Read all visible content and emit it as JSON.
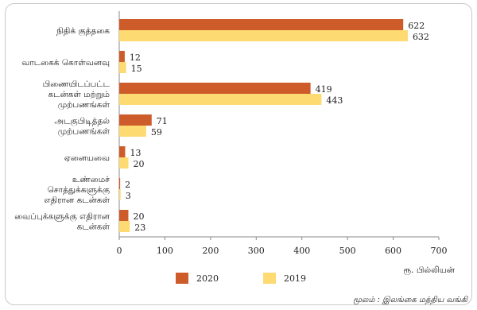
{
  "chart_data": {
    "type": "bar",
    "orientation": "horizontal",
    "categories": [
      [
        "நிதிக் குத்தகை"
      ],
      [
        "வாடகைக் கொள்வனவு"
      ],
      [
        "பிணையிடப்பட்ட",
        "கடன்கள் மற்றும்",
        "முற்பணங்கள்"
      ],
      [
        "அடகுபிடித்தல்",
        "முற்பணங்கள்"
      ],
      [
        "ஏனையவை"
      ],
      [
        "உண்மைச்",
        "சொத்துக்களுக்கு",
        "எதிரான கடன்கள்"
      ],
      [
        "வைப்புக்களுக்கு எதிரான",
        "கடன்கள்"
      ]
    ],
    "series": [
      {
        "name": "2020",
        "color": "#cd5c2a",
        "values": [
          622,
          12,
          419,
          71,
          13,
          2,
          20
        ]
      },
      {
        "name": "2019",
        "color": "#fddb72",
        "values": [
          632,
          15,
          443,
          59,
          20,
          3,
          23
        ]
      }
    ],
    "xlim": [
      0,
      700
    ],
    "xticks": [
      0,
      100,
      200,
      300,
      400,
      500,
      600,
      700
    ],
    "xlabel": "ரூ. பில்லியன்",
    "legend_position": "bottom",
    "grid": false,
    "source": "மூலம் : இலங்கை மத்திய வங்கி"
  }
}
